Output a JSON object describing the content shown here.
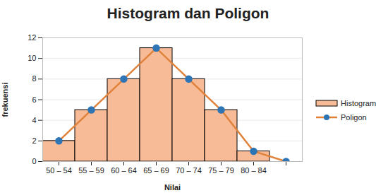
{
  "chart_data": {
    "type": "bar",
    "title": "Histogram dan Poligon",
    "x_label": "Nilai",
    "y_label": "frekuensi",
    "categories": [
      "50 – 54",
      "55 – 59",
      "60 – 64",
      "65 – 69",
      "70 – 74",
      "75 – 79",
      "80 – 84",
      null
    ],
    "series": [
      {
        "name": "Histogram",
        "type": "bar",
        "color": "#f8bb98",
        "values": [
          2,
          5,
          8,
          11,
          8,
          5,
          1,
          null
        ]
      },
      {
        "name": "Poligon",
        "type": "line",
        "color": "#e0823a",
        "marker": "circle",
        "values": [
          2,
          5,
          8,
          11,
          8,
          5,
          1,
          0
        ]
      }
    ],
    "ylim": [
      0,
      12
    ],
    "yticks": [
      0,
      2,
      4,
      6,
      8,
      10,
      12
    ],
    "grid": true,
    "legend": "right"
  }
}
